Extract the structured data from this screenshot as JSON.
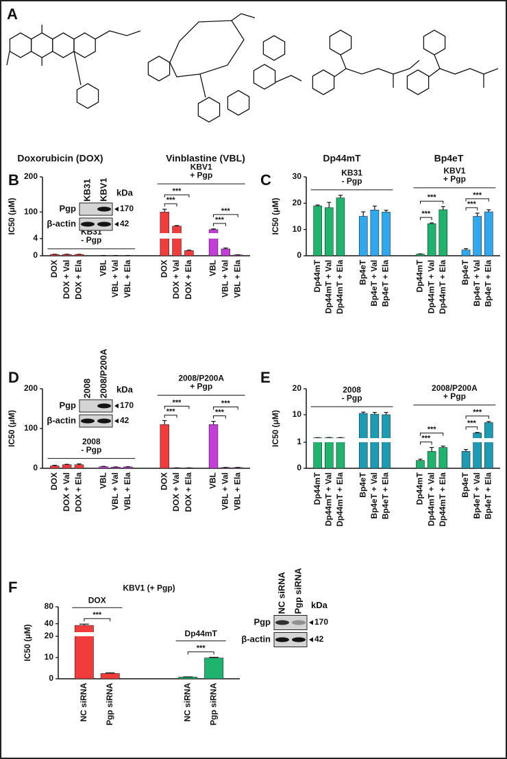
{
  "structures": {
    "panel": "A",
    "compounds": [
      "Doxorubicin (DOX)",
      "Vinblastine (VBL)",
      "Dp44mT",
      "Bp4eT"
    ]
  },
  "chart_data": [
    {
      "type": "bar",
      "panel": "B",
      "ylabel": "IC50 (μM)",
      "ylim": [
        0,
        200
      ],
      "y_segments": [
        [
          0,
          4
        ],
        [
          40,
          200
        ]
      ],
      "yticks": [
        0,
        4,
        100,
        200
      ],
      "blot": {
        "lanes": [
          "KB31",
          "KBV1"
        ],
        "unit": "kDa",
        "rows": [
          {
            "name": "Pgp",
            "size": "170"
          },
          {
            "name": "β-actin",
            "size": "42"
          }
        ]
      },
      "groups": [
        {
          "name": "KB31",
          "note": "- Pgp",
          "clusters": [
            {
              "color": "#f23c3c",
              "bars": [
                {
                  "category": "DOX",
                  "value": 0.3,
                  "error": 0.05
                },
                {
                  "category": "DOX + Val",
                  "value": 0.3,
                  "error": 0.05
                },
                {
                  "category": "DOX + Ela",
                  "value": 0.3,
                  "error": 0.04
                }
              ]
            },
            {
              "color": "#c23ed6",
              "bars": [
                {
                  "category": "VBL",
                  "value": 0.05,
                  "error": 0.01
                },
                {
                  "category": "VBL + Val",
                  "value": 0.05,
                  "error": 0.01
                },
                {
                  "category": "VBL + Ela",
                  "value": 0.05,
                  "error": 0.01
                }
              ]
            }
          ]
        },
        {
          "name": "KBV1",
          "note": "+ Pgp",
          "clusters": [
            {
              "color": "#f23c3c",
              "bars": [
                {
                  "category": "DOX",
                  "value": 100,
                  "error": 8
                },
                {
                  "category": "DOX + Val",
                  "value": 60,
                  "error": 1.5,
                  "significance": "***"
                },
                {
                  "category": "DOX + Ela",
                  "value": 1.2,
                  "error": 0.1,
                  "significance": "***"
                }
              ]
            },
            {
              "color": "#c23ed6",
              "bars": [
                {
                  "category": "VBL",
                  "value": 50,
                  "error": 2
                },
                {
                  "category": "VBL + Val",
                  "value": 1.6,
                  "error": 0.2,
                  "significance": "***"
                },
                {
                  "category": "VBL + Ela",
                  "value": 0.2,
                  "error": 0.02,
                  "significance": "***"
                }
              ]
            }
          ]
        }
      ]
    },
    {
      "type": "bar",
      "panel": "C",
      "ylabel": "IC50 (μM)",
      "ylim": [
        0,
        30
      ],
      "yticks": [
        0,
        10,
        20,
        30
      ],
      "groups": [
        {
          "name": "KB31",
          "note": "- Pgp",
          "clusters": [
            {
              "color": "#1fb46e",
              "bars": [
                {
                  "category": "Dp44mT",
                  "value": 19,
                  "error": 0.3
                },
                {
                  "category": "Dp44mT + Val",
                  "value": 18.3,
                  "error": 2
                },
                {
                  "category": "Dp44mT + Ela",
                  "value": 22,
                  "error": 1
                }
              ]
            },
            {
              "color": "#2fa8f2",
              "bars": [
                {
                  "category": "Bp4eT",
                  "value": 15,
                  "error": 1.7
                },
                {
                  "category": "Bp4eT + Val",
                  "value": 17.4,
                  "error": 1.5
                },
                {
                  "category": "Bp4eT + Ela",
                  "value": 16.6,
                  "error": 0.7
                }
              ]
            }
          ]
        },
        {
          "name": "KBV1",
          "note": "+ Pgp",
          "clusters": [
            {
              "color": "#1fb46e",
              "bars": [
                {
                  "category": "Dp44mT",
                  "value": 0.6,
                  "error": 0.1
                },
                {
                  "category": "Dp44mT + Val",
                  "value": 12.2,
                  "error": 0.3,
                  "significance": "***"
                },
                {
                  "category": "Dp44mT + Ela",
                  "value": 17.5,
                  "error": 1.2,
                  "significance": "***"
                }
              ]
            },
            {
              "color": "#2fa8f2",
              "bars": [
                {
                  "category": "Bp4eT",
                  "value": 2.2,
                  "error": 0.5
                },
                {
                  "category": "Bp4eT + Val",
                  "value": 15,
                  "error": 1.2,
                  "significance": "***"
                },
                {
                  "category": "Bp4eT + Ela",
                  "value": 16.7,
                  "error": 0.8,
                  "significance": "***"
                }
              ]
            }
          ]
        }
      ]
    },
    {
      "type": "bar",
      "panel": "D",
      "ylabel": "IC50 (μM)",
      "ylim": [
        0,
        200
      ],
      "yticks": [
        0,
        100,
        200
      ],
      "blot": {
        "lanes": [
          "2008",
          "2008/P200A"
        ],
        "unit": "kDa",
        "rows": [
          {
            "name": "Pgp",
            "size": "170"
          },
          {
            "name": "β-actin",
            "size": "42"
          }
        ]
      },
      "groups": [
        {
          "name": "2008",
          "note": "- Pgp",
          "clusters": [
            {
              "color": "#f23c3c",
              "bars": [
                {
                  "category": "DOX",
                  "value": 6,
                  "error": 1.5
                },
                {
                  "category": "DOX + Val",
                  "value": 9,
                  "error": 1
                },
                {
                  "category": "DOX + Ela",
                  "value": 9,
                  "error": 2
                }
              ]
            },
            {
              "color": "#c23ed6",
              "bars": [
                {
                  "category": "VBL",
                  "value": 4,
                  "error": 0.8
                },
                {
                  "category": "VBL + Val",
                  "value": 3,
                  "error": 0.5
                },
                {
                  "category": "VBL + Ela",
                  "value": 3.5,
                  "error": 0.5
                }
              ]
            }
          ]
        },
        {
          "name": "2008/P200A",
          "note": "+ Pgp",
          "clusters": [
            {
              "color": "#f23c3c",
              "bars": [
                {
                  "category": "DOX",
                  "value": 110,
                  "error": 10
                },
                {
                  "category": "DOX + Val",
                  "value": 1,
                  "error": 0.2,
                  "significance": "***"
                },
                {
                  "category": "DOX + Ela",
                  "value": 1,
                  "error": 0.2,
                  "significance": "***"
                }
              ]
            },
            {
              "color": "#c23ed6",
              "bars": [
                {
                  "category": "VBL",
                  "value": 110,
                  "error": 8
                },
                {
                  "category": "VBL + Val",
                  "value": 2,
                  "error": 0.3,
                  "significance": "***"
                },
                {
                  "category": "VBL + Ela",
                  "value": 2,
                  "error": 0.3,
                  "significance": "***"
                }
              ]
            }
          ]
        }
      ]
    },
    {
      "type": "bar",
      "panel": "E",
      "ylabel": "IC50 (μM)",
      "ylim": [
        0,
        20
      ],
      "y_segments": [
        [
          0,
          1
        ],
        [
          1,
          20
        ]
      ],
      "yticks": [
        0,
        1,
        10,
        20
      ],
      "groups": [
        {
          "name": "2008",
          "note": "- Pgp",
          "clusters": [
            {
              "color": "#1fb46e",
              "bars": [
                {
                  "category": "Dp44mT",
                  "value": 1.15,
                  "error": 0.03
                },
                {
                  "category": "Dp44mT + Val",
                  "value": 1.2,
                  "error": 0.05
                },
                {
                  "category": "Dp44mT + Ela",
                  "value": 1.15,
                  "error": 0.05
                }
              ]
            },
            {
              "color": "#1c9cb4",
              "bars": [
                {
                  "category": "Bp4eT",
                  "value": 10.5,
                  "error": 0.5
                },
                {
                  "category": "Bp4eT + Val",
                  "value": 10.2,
                  "error": 0.7
                },
                {
                  "category": "Bp4eT + Ela",
                  "value": 10,
                  "error": 0.9
                }
              ]
            }
          ]
        },
        {
          "name": "2008/P200A",
          "note": "+ Pgp",
          "clusters": [
            {
              "color": "#1fb46e",
              "bars": [
                {
                  "category": "Dp44mT",
                  "value": 0.3,
                  "error": 0.05
                },
                {
                  "category": "Dp44mT + Val",
                  "value": 0.65,
                  "error": 0.15,
                  "significance": "***"
                },
                {
                  "category": "Dp44mT + Ela",
                  "value": 0.8,
                  "error": 0.05,
                  "significance": "***"
                }
              ]
            },
            {
              "color": "#1c9cb4",
              "bars": [
                {
                  "category": "Bp4eT",
                  "value": 0.65,
                  "error": 0.07
                },
                {
                  "category": "Bp4eT + Val",
                  "value": 3,
                  "error": 0.2,
                  "significance": "***"
                },
                {
                  "category": "Bp4eT + Ela",
                  "value": 7,
                  "error": 0.4,
                  "significance": "***"
                }
              ]
            }
          ]
        }
      ]
    },
    {
      "type": "bar",
      "panel": "F",
      "title": "KBV1 (+ Pgp)",
      "ylabel": "IC50 (μM)",
      "ylim": [
        0,
        80
      ],
      "y_segments": [
        [
          0,
          20
        ],
        [
          20,
          80
        ]
      ],
      "yticks": [
        0,
        10,
        20,
        40,
        80
      ],
      "blot": {
        "lanes": [
          "NC siRNA",
          "Pgp siRNA"
        ],
        "unit": "kDa",
        "rows": [
          {
            "name": "Pgp",
            "size": "170"
          },
          {
            "name": "β-actin",
            "size": "42"
          }
        ]
      },
      "groups": [
        {
          "name": "DOX",
          "clusters": [
            {
              "color": "#f23c3c",
              "bars": [
                {
                  "category": "NC siRNA",
                  "value": 36,
                  "error": 3
                },
                {
                  "category": "Pgp siRNA",
                  "value": 2.5,
                  "error": 0.3,
                  "significance": "***"
                }
              ]
            }
          ]
        },
        {
          "name": "Dp44mT",
          "clusters": [
            {
              "color": "#1fb46e",
              "bars": [
                {
                  "category": "NC siRNA",
                  "value": 0.8,
                  "error": 0.1
                },
                {
                  "category": "Pgp siRNA",
                  "value": 9.8,
                  "error": 0.3,
                  "significance": "***"
                }
              ]
            }
          ]
        }
      ]
    }
  ]
}
